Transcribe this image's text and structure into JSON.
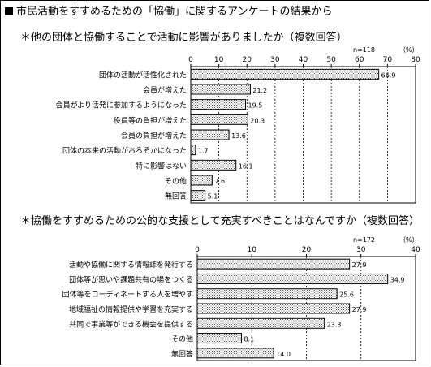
{
  "page_title": "市民活動をすすめるための「協働」に関するアンケートの結果から",
  "chart_data": [
    {
      "type": "bar",
      "orientation": "horizontal",
      "title": "＊他の団体と協働することで活動に影響がありましたか（複数回答）",
      "n_label": "n=118",
      "unit_label": "（%）",
      "categories": [
        "団体の活動が活性化された",
        "会員が増えた",
        "会員がより活発に参加するようになった",
        "役員等の負担が増えた",
        "会員の負担が増えた",
        "団体の本来の活動がおろそかになった",
        "特に影響はない",
        "その他",
        "無回答"
      ],
      "values": [
        66.9,
        21.2,
        19.5,
        20.3,
        13.6,
        1.7,
        16.1,
        7.6,
        5.1
      ],
      "value_labels": [
        "66.9",
        "21.2",
        "19.5",
        "20.3",
        "13.6",
        "1.7",
        "16.1",
        "7.6",
        "5.1"
      ],
      "xlim": [
        0,
        80
      ],
      "ticks": [
        0,
        10,
        20,
        30,
        40,
        50,
        60,
        70,
        80
      ],
      "grid": true,
      "bar_pattern": "dotted"
    },
    {
      "type": "bar",
      "orientation": "horizontal",
      "title": "＊協働をすすめるための公的な支援として充実すべきことはなんですか（複数回答）",
      "n_label": "n=172",
      "unit_label": "（%）",
      "categories": [
        "活動や協働に関する情報誌を発行する",
        "団体等が思いや課題共有の場をつくる",
        "団体等をコーディネートする人を増やす",
        "地域福祉の情報提供や学習を充実する",
        "共同で事業等ができる機会を提供する",
        "その他",
        "無回答"
      ],
      "values": [
        27.9,
        34.9,
        25.6,
        27.9,
        23.3,
        8.1,
        14.0
      ],
      "value_labels": [
        "27.9",
        "34.9",
        "25.6",
        "27.9",
        "23.3",
        "8.1",
        "14.0"
      ],
      "xlim": [
        0,
        40
      ],
      "ticks": [
        0,
        10,
        20,
        30,
        40
      ],
      "grid": true,
      "bar_pattern": "dotted"
    }
  ]
}
